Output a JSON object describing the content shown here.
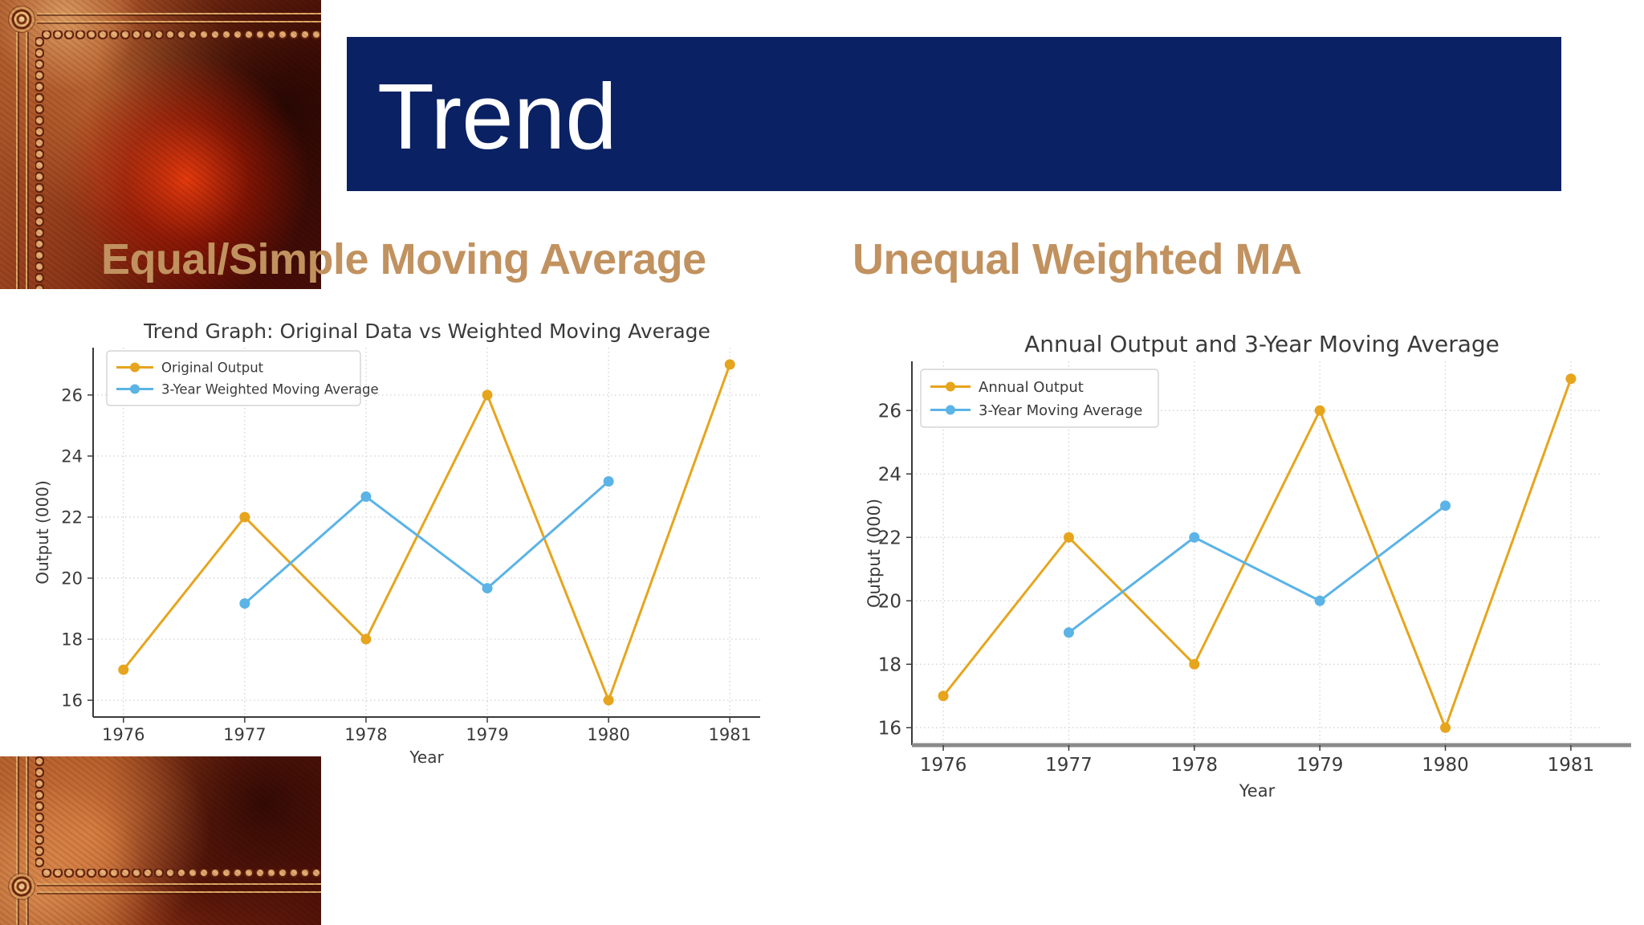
{
  "slide": {
    "title": "Trend",
    "headings": [
      {
        "text": "Equal/Simple Moving Average"
      },
      {
        "text": "Unequal Weighted MA"
      }
    ],
    "colors": {
      "title_bar_navy": "#0a2163",
      "heading_tan": "#c1925f",
      "series_orange": "#e6a51d",
      "series_blue": "#5bb3e6"
    }
  },
  "chart_data": [
    {
      "type": "line",
      "title": "Trend Graph: Original Data vs Weighted Moving Average",
      "xlabel": "Year",
      "ylabel": "Output (000)",
      "x": [
        1976,
        1977,
        1978,
        1979,
        1980,
        1981
      ],
      "yticks": [
        16,
        18,
        20,
        22,
        24,
        26
      ],
      "xlim": [
        1975.75,
        1981.25
      ],
      "ylim": [
        15.45,
        27.55
      ],
      "grid": true,
      "legend_position": "upper left",
      "series": [
        {
          "name": "Original Output",
          "color": "#e6a51d",
          "x": [
            1976,
            1977,
            1978,
            1979,
            1980,
            1981
          ],
          "values": [
            17,
            22,
            18,
            26,
            16,
            27
          ]
        },
        {
          "name": "3-Year Weighted Moving Average",
          "color": "#5bb3e6",
          "x": [
            1977,
            1978,
            1979,
            1980
          ],
          "values": [
            19.17,
            22.67,
            19.67,
            23.17
          ]
        }
      ]
    },
    {
      "type": "line",
      "title": "Annual Output and 3-Year Moving Average",
      "xlabel": "Year",
      "ylabel": "Output (000)",
      "x": [
        1976,
        1977,
        1978,
        1979,
        1980,
        1981
      ],
      "yticks": [
        16,
        18,
        20,
        22,
        24,
        26
      ],
      "xlim": [
        1975.75,
        1981.25
      ],
      "ylim": [
        15.45,
        27.55
      ],
      "grid": true,
      "legend_position": "upper left",
      "series": [
        {
          "name": "Annual Output",
          "color": "#e6a51d",
          "x": [
            1976,
            1977,
            1978,
            1979,
            1980,
            1981
          ],
          "values": [
            17,
            22,
            18,
            26,
            16,
            27
          ]
        },
        {
          "name": "3-Year Moving Average",
          "color": "#5bb3e6",
          "x": [
            1977,
            1978,
            1979,
            1980
          ],
          "values": [
            19,
            22,
            20,
            23
          ]
        }
      ]
    }
  ]
}
